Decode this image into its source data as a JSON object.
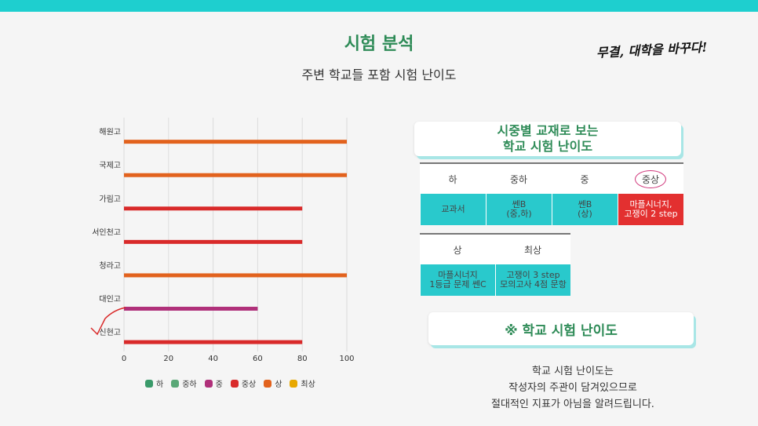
{
  "header": {
    "title": "시험 분석",
    "subtitle": "주변 학교들 포함 시험 난이도",
    "slogan": "무결, 대학을 바꾸다!"
  },
  "colors": {
    "하": "#3a9a6a",
    "중하": "#5aa877",
    "중": "#b0307a",
    "중상": "#d92a2a",
    "상": "#e2621d",
    "최상": "#e8a800",
    "accent": "#1ecfcf",
    "title_green": "#2e8b57"
  },
  "chart_data": {
    "type": "bar",
    "orientation": "horizontal",
    "categories": [
      "해원고",
      "국제고",
      "가림고",
      "서인천고",
      "청라고",
      "대인고",
      "신현고"
    ],
    "values": [
      100,
      100,
      80,
      80,
      100,
      60,
      80
    ],
    "levels": [
      "상",
      "상",
      "중상",
      "중상",
      "상",
      "중",
      "중상"
    ],
    "xlim": [
      0,
      100
    ],
    "xticks": [
      0,
      20,
      40,
      60,
      80,
      100
    ],
    "grid": true,
    "legend_position": "bottom",
    "legend": [
      "하",
      "중하",
      "중",
      "중상",
      "상",
      "최상"
    ]
  },
  "card_textbook": {
    "line1": "시중별 교재로 보는",
    "line2": "학교 시험 난이도"
  },
  "table1": {
    "headers": [
      "하",
      "중하",
      "중",
      "중상"
    ],
    "cells": [
      "교과서",
      "쎈B\n(중,하)",
      "쎈B\n(상)",
      "마플시너지,\n고쟁이 2 step"
    ]
  },
  "table2": {
    "headers": [
      "상",
      "최상"
    ],
    "cells": [
      "마플시너지\n1등급 문제 쎈C",
      "고쟁이 3 step\n모의고사 4점 문항"
    ]
  },
  "card_difficulty": {
    "label": "※ 학교 시험 난이도"
  },
  "note": {
    "line1": "학교 시험 난이도는",
    "line2": "작성자의 주관이 담겨있으므로",
    "line3": "절대적인 지표가 아님을 알려드립니다."
  }
}
